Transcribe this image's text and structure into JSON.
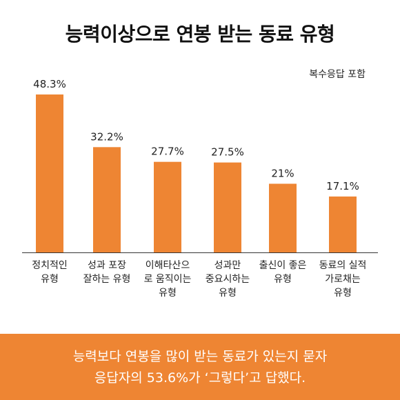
{
  "header": {
    "title": "능력이상으로 연봉 받는 동료 유형",
    "note": "복수응답 포함"
  },
  "colors": {
    "bar": "#ee8533",
    "footer_background": "#ee8533",
    "axis": "#333333",
    "text": "#222222"
  },
  "chart_data": {
    "type": "bar",
    "categories": [
      [
        "정치적인",
        "유형"
      ],
      [
        "성과 포장",
        "잘하는 유형"
      ],
      [
        "이해타산으",
        "로 움직이는",
        "유형"
      ],
      [
        "성과만",
        "중요시하는",
        "유형"
      ],
      [
        "출신이 좋은",
        "유형"
      ],
      [
        "동료의 실적",
        "가로채는",
        "유형"
      ]
    ],
    "values": [
      48.3,
      32.2,
      27.7,
      27.5,
      21,
      17.1
    ],
    "value_labels": [
      "48.3%",
      "32.2%",
      "27.7%",
      "27.5%",
      "21%",
      "17.1%"
    ],
    "ylim": [
      0,
      50
    ]
  },
  "footer": {
    "line1": "능력보다 연봉을 많이 받는 동료가 있는지 묻자",
    "line2": "응답자의 53.6%가 ‘그렇다’고 답했다."
  }
}
